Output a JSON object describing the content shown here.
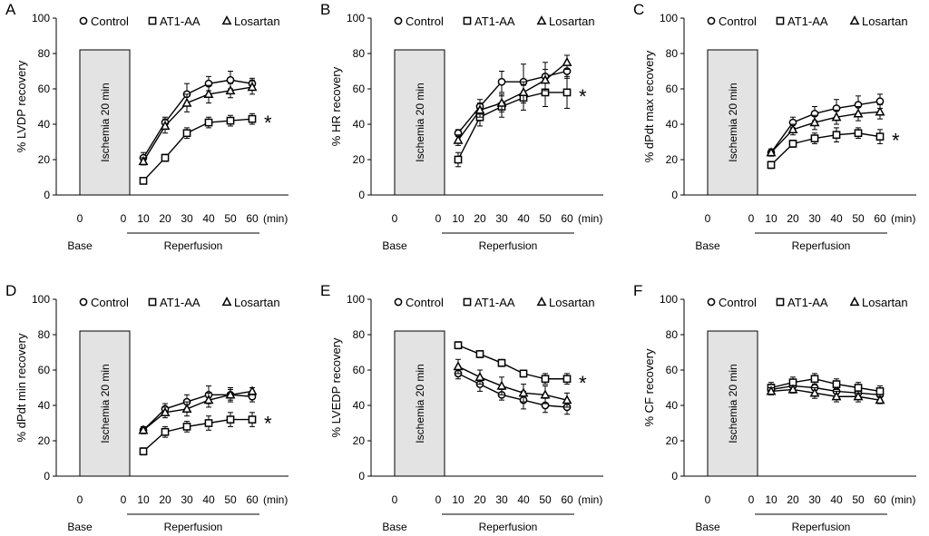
{
  "colors": {
    "axis": "#000000",
    "ischemia_fill": "#e3e3e3",
    "marker_fill": "#ffffff"
  },
  "shared": {
    "legend": [
      "Control",
      "AT1-AA",
      "Losartan"
    ],
    "x_categories": [
      "0",
      "0",
      "10",
      "20",
      "30",
      "40",
      "50",
      "60"
    ],
    "x_unit": "(min)",
    "ylim": [
      0,
      100
    ],
    "y_ticks": [
      "0",
      "20",
      "40",
      "60",
      "80",
      "100"
    ],
    "base_label": "Base",
    "reperfusion_label": "Reperfusion",
    "ischemia_label": "Ischemia  20 min",
    "significance": "*"
  },
  "chart_data": [
    {
      "type": "line",
      "panel": "A",
      "title": "",
      "ylabel": "% LVDP recovery",
      "ylim": [
        0,
        100
      ],
      "x": [
        10,
        20,
        30,
        40,
        50,
        60
      ],
      "series": [
        {
          "name": "Control",
          "values": [
            21,
            41,
            57,
            63,
            65,
            63
          ],
          "err": [
            3,
            3,
            6,
            4,
            5,
            3
          ]
        },
        {
          "name": "AT1-AA",
          "values": [
            8,
            21,
            35,
            41,
            42,
            43
          ],
          "err": [
            1,
            2,
            3,
            3,
            3,
            3
          ]
        },
        {
          "name": "Losartan",
          "values": [
            19,
            39,
            52,
            57,
            59,
            61
          ],
          "err": [
            2,
            4,
            5,
            5,
            4,
            4
          ]
        }
      ]
    },
    {
      "type": "line",
      "panel": "B",
      "title": "",
      "ylabel": "% HR recovery",
      "ylim": [
        0,
        100
      ],
      "x": [
        10,
        20,
        30,
        40,
        50,
        60
      ],
      "series": [
        {
          "name": "Control",
          "values": [
            35,
            50,
            64,
            64,
            67,
            70
          ],
          "err": [
            2,
            4,
            6,
            10,
            8,
            4
          ]
        },
        {
          "name": "AT1-AA",
          "values": [
            20,
            44,
            50,
            55,
            58,
            58
          ],
          "err": [
            4,
            5,
            6,
            7,
            8,
            9
          ]
        },
        {
          "name": "Losartan",
          "values": [
            31,
            48,
            52,
            58,
            65,
            75
          ],
          "err": [
            3,
            4,
            5,
            6,
            6,
            4
          ]
        }
      ]
    },
    {
      "type": "line",
      "panel": "C",
      "title": "",
      "ylabel": "% dPdt max recovery",
      "ylim": [
        0,
        100
      ],
      "x": [
        10,
        20,
        30,
        40,
        50,
        60
      ],
      "series": [
        {
          "name": "Control",
          "values": [
            24,
            41,
            46,
            49,
            51,
            53
          ],
          "err": [
            2,
            3,
            4,
            5,
            5,
            4
          ]
        },
        {
          "name": "AT1-AA",
          "values": [
            17,
            29,
            32,
            34,
            35,
            33
          ],
          "err": [
            2,
            2,
            3,
            4,
            3,
            4
          ]
        },
        {
          "name": "Losartan",
          "values": [
            24,
            37,
            41,
            44,
            46,
            47
          ],
          "err": [
            2,
            3,
            4,
            4,
            4,
            4
          ]
        }
      ]
    },
    {
      "type": "line",
      "panel": "D",
      "title": "",
      "ylabel": "% dPdt min recovery",
      "ylim": [
        0,
        100
      ],
      "x": [
        10,
        20,
        30,
        40,
        50,
        60
      ],
      "series": [
        {
          "name": "Control",
          "values": [
            26,
            38,
            42,
            46,
            46,
            45
          ],
          "err": [
            2,
            3,
            4,
            5,
            4,
            3
          ]
        },
        {
          "name": "AT1-AA",
          "values": [
            14,
            25,
            28,
            30,
            32,
            32
          ],
          "err": [
            2,
            3,
            3,
            4,
            4,
            4
          ]
        },
        {
          "name": "Losartan",
          "values": [
            26,
            36,
            38,
            43,
            46,
            48
          ],
          "err": [
            2,
            3,
            4,
            4,
            3,
            2
          ]
        }
      ]
    },
    {
      "type": "line",
      "panel": "E",
      "title": "",
      "ylabel": "% LVEDP recovery",
      "ylim": [
        0,
        100
      ],
      "x": [
        10,
        20,
        30,
        40,
        50,
        60
      ],
      "series": [
        {
          "name": "Control",
          "values": [
            58,
            52,
            46,
            43,
            40,
            39
          ],
          "err": [
            3,
            4,
            3,
            5,
            4,
            4
          ]
        },
        {
          "name": "AT1-AA",
          "values": [
            74,
            69,
            64,
            58,
            55,
            55
          ],
          "err": [
            2,
            2,
            2,
            2,
            3,
            3
          ]
        },
        {
          "name": "Losartan",
          "values": [
            62,
            56,
            51,
            47,
            46,
            43
          ],
          "err": [
            4,
            4,
            5,
            5,
            5,
            4
          ]
        }
      ]
    },
    {
      "type": "line",
      "panel": "F",
      "title": "",
      "ylabel": "% CF recovery",
      "ylim": [
        0,
        100
      ],
      "x": [
        10,
        20,
        30,
        40,
        50,
        60
      ],
      "series": [
        {
          "name": "Control",
          "values": [
            49,
            51,
            50,
            48,
            47,
            46
          ],
          "err": [
            3,
            3,
            3,
            3,
            3,
            3
          ]
        },
        {
          "name": "AT1-AA",
          "values": [
            50,
            53,
            55,
            52,
            50,
            48
          ],
          "err": [
            3,
            3,
            3,
            3,
            3,
            3
          ]
        },
        {
          "name": "Losartan",
          "values": [
            48,
            49,
            47,
            45,
            45,
            43
          ],
          "err": [
            2,
            2,
            3,
            3,
            3,
            2
          ]
        }
      ]
    }
  ]
}
